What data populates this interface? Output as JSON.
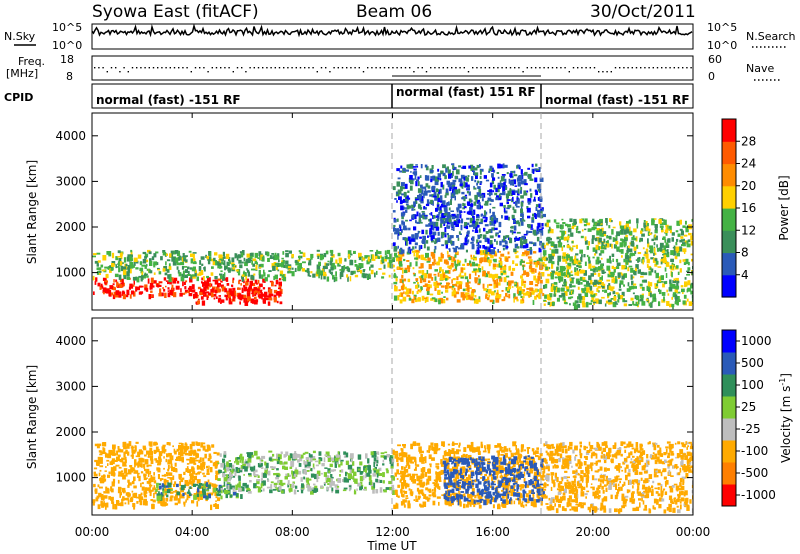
{
  "header": {
    "station": "Syowa East (fitACF)",
    "beam": "Beam 06",
    "date": "30/Oct/2011"
  },
  "panels": {
    "nsky_label": "N.Sky",
    "nsky_ticks": [
      "10^5",
      "10^0"
    ],
    "nsearch_label": "N.Search",
    "nsearch_ticks": [
      "10^5",
      "10^0"
    ],
    "freq_label": "Freq.",
    "freq_unit": "[MHz]",
    "freq_ticks": [
      "18",
      "8"
    ],
    "nave_label": "Nave",
    "nave_ticks": [
      "60",
      "0"
    ],
    "cpid_label": "CPID",
    "cpid_segments": [
      "normal (fast) -151 RF",
      "normal (fast) 151 RF",
      "normal (fast) -151 RF"
    ]
  },
  "colors": {
    "power": [
      "#0000ff",
      "#2a5ab8",
      "#3a8f5a",
      "#44b244",
      "#ffd000",
      "#ff8c00",
      "#ff5a00",
      "#ff0000"
    ],
    "velocity": [
      "#ff0000",
      "#ff7f00",
      "#ffaa00",
      "#bebebe",
      "#7fcc33",
      "#2f8f5a",
      "#2a5ab8",
      "#0000ff"
    ]
  },
  "chart_data": [
    {
      "type": "heatmap",
      "title": "",
      "xlabel": "Time UT",
      "ylabel": "Slant Range [km]",
      "xlim": [
        "00:00",
        "24:00"
      ],
      "ylim": [
        180,
        4500
      ],
      "x_ticks": [
        "00:00",
        "04:00",
        "08:00",
        "12:00",
        "16:00",
        "20:00",
        "00:00"
      ],
      "y_ticks": [
        1000,
        2000,
        3000,
        4000
      ],
      "colorbar_label": "Power [dB]",
      "colorbar_ticks": [
        4,
        8,
        12,
        16,
        20,
        24,
        28
      ],
      "colorbar_range": [
        0,
        32
      ],
      "regions": [
        {
          "t0": 0.0,
          "t1": 7.5,
          "r0": 500,
          "r1": 900,
          "value": 30
        },
        {
          "t0": 4.0,
          "t1": 7.5,
          "r0": 350,
          "r1": 700,
          "value": 31
        },
        {
          "t0": 0.0,
          "t1": 12.0,
          "r0": 900,
          "r1": 1500,
          "value": 13
        },
        {
          "t0": 12.0,
          "t1": 18.0,
          "r0": 400,
          "r1": 1500,
          "value": 19
        },
        {
          "t0": 12.0,
          "t1": 18.0,
          "r0": 1500,
          "r1": 3400,
          "value": 6
        },
        {
          "t0": 18.0,
          "t1": 24.0,
          "r0": 300,
          "r1": 2200,
          "value": 14
        }
      ]
    },
    {
      "type": "heatmap",
      "title": "",
      "xlabel": "Time UT",
      "ylabel": "Slant Range [km]",
      "xlim": [
        "00:00",
        "24:00"
      ],
      "ylim": [
        180,
        4500
      ],
      "x_ticks": [
        "00:00",
        "04:00",
        "08:00",
        "12:00",
        "16:00",
        "20:00",
        "00:00"
      ],
      "y_ticks": [
        1000,
        2000,
        3000,
        4000
      ],
      "colorbar_label": "Velocity [m s^-1]",
      "colorbar_ticks": [
        "1000",
        "500",
        "100",
        "25",
        "-25",
        "-100",
        "-500",
        "-1000"
      ],
      "regions": [
        {
          "t0": 0.0,
          "t1": 5.0,
          "r0": 400,
          "r1": 1800,
          "value": -300
        },
        {
          "t0": 2.5,
          "t1": 6.0,
          "r0": 600,
          "r1": 900,
          "value": 60
        },
        {
          "t0": 5.0,
          "t1": 12.0,
          "r0": 700,
          "r1": 1600,
          "value": 0
        },
        {
          "t0": 12.0,
          "t1": 18.0,
          "r0": 400,
          "r1": 1800,
          "value": -200
        },
        {
          "t0": 14.0,
          "t1": 18.0,
          "r0": 500,
          "r1": 1500,
          "value": 300
        },
        {
          "t0": 18.0,
          "t1": 24.0,
          "r0": 300,
          "r1": 1800,
          "value": -150
        }
      ]
    }
  ]
}
